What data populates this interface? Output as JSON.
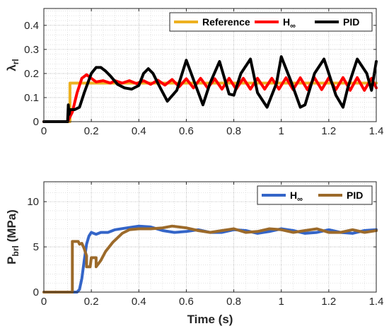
{
  "chart_data": [
    {
      "type": "line",
      "ylabel": "λ",
      "ylabel_sub": "rl",
      "xlabel": "",
      "xlim": [
        0,
        1.4
      ],
      "ylim": [
        0,
        0.47
      ],
      "xticks": [
        "0",
        "0.2",
        "0.4",
        "0.6",
        "0.8",
        "1",
        "1.2",
        "1.4"
      ],
      "yticks": [
        "0",
        "0.1",
        "0.2",
        "0.3",
        "0.4"
      ],
      "grid": true,
      "legend_position": "top-right",
      "series": [
        {
          "name": "Reference",
          "color": "#edb120",
          "x": [
            0,
            0.11,
            0.11,
            1.4
          ],
          "y": [
            0,
            0,
            0.16,
            0.16
          ]
        },
        {
          "name": "H",
          "name_sub": "∞",
          "color": "#ff0000",
          "x": [
            0,
            0.1,
            0.12,
            0.14,
            0.16,
            0.18,
            0.2,
            0.22,
            0.25,
            0.28,
            0.3,
            0.33,
            0.36,
            0.39,
            0.42,
            0.45,
            0.48,
            0.51,
            0.54,
            0.57,
            0.6,
            0.63,
            0.66,
            0.69,
            0.72,
            0.75,
            0.78,
            0.81,
            0.84,
            0.87,
            0.9,
            0.93,
            0.96,
            0.99,
            1.02,
            1.05,
            1.08,
            1.11,
            1.14,
            1.17,
            1.2,
            1.23,
            1.26,
            1.29,
            1.32,
            1.35,
            1.38,
            1.4
          ],
          "y": [
            0,
            0,
            0.04,
            0.12,
            0.18,
            0.195,
            0.18,
            0.165,
            0.17,
            0.16,
            0.17,
            0.16,
            0.17,
            0.158,
            0.17,
            0.155,
            0.172,
            0.152,
            0.175,
            0.145,
            0.178,
            0.14,
            0.18,
            0.14,
            0.178,
            0.135,
            0.18,
            0.135,
            0.18,
            0.135,
            0.18,
            0.135,
            0.18,
            0.135,
            0.182,
            0.133,
            0.182,
            0.133,
            0.182,
            0.133,
            0.182,
            0.133,
            0.183,
            0.13,
            0.183,
            0.13,
            0.18,
            0.14
          ]
        },
        {
          "name": "PID",
          "color": "#000000",
          "x": [
            0,
            0.1,
            0.103,
            0.106,
            0.11,
            0.13,
            0.15,
            0.17,
            0.2,
            0.22,
            0.24,
            0.26,
            0.28,
            0.31,
            0.34,
            0.37,
            0.4,
            0.42,
            0.44,
            0.46,
            0.48,
            0.52,
            0.56,
            0.6,
            0.63,
            0.67,
            0.7,
            0.74,
            0.78,
            0.8,
            0.83,
            0.87,
            0.9,
            0.94,
            0.98,
            1.0,
            1.04,
            1.08,
            1.1,
            1.14,
            1.18,
            1.2,
            1.23,
            1.26,
            1.28,
            1.32,
            1.36,
            1.38,
            1.4
          ],
          "y": [
            0,
            0,
            0.07,
            0.03,
            0.05,
            0.05,
            0.06,
            0.12,
            0.2,
            0.225,
            0.225,
            0.21,
            0.19,
            0.155,
            0.14,
            0.135,
            0.15,
            0.2,
            0.22,
            0.2,
            0.16,
            0.085,
            0.13,
            0.255,
            0.175,
            0.07,
            0.16,
            0.25,
            0.115,
            0.11,
            0.2,
            0.26,
            0.12,
            0.06,
            0.16,
            0.27,
            0.17,
            0.06,
            0.07,
            0.2,
            0.26,
            0.2,
            0.11,
            0.06,
            0.14,
            0.26,
            0.2,
            0.13,
            0.25
          ]
        }
      ]
    },
    {
      "type": "line",
      "ylabel": "P",
      "ylabel_sub": "brl",
      "ylabel_unit": " (MPa)",
      "xlabel": "Time (s)",
      "xlim": [
        0,
        1.4
      ],
      "ylim": [
        0,
        12.2
      ],
      "xticks": [
        "0",
        "0.2",
        "0.4",
        "0.6",
        "0.8",
        "1",
        "1.2",
        "1.4"
      ],
      "yticks": [
        "0",
        "5",
        "10"
      ],
      "grid": true,
      "legend_position": "top-right",
      "series": [
        {
          "name": "H",
          "name_sub": "∞",
          "color": "#3465c8",
          "x": [
            0,
            0.14,
            0.15,
            0.16,
            0.17,
            0.18,
            0.19,
            0.2,
            0.22,
            0.24,
            0.27,
            0.3,
            0.35,
            0.4,
            0.45,
            0.5,
            0.55,
            0.6,
            0.65,
            0.7,
            0.75,
            0.8,
            0.85,
            0.9,
            0.95,
            1.0,
            1.05,
            1.1,
            1.15,
            1.2,
            1.25,
            1.3,
            1.35,
            1.4
          ],
          "y": [
            0,
            0,
            0.3,
            1.5,
            3.5,
            5.3,
            6.2,
            6.6,
            6.4,
            6.6,
            6.6,
            6.9,
            7.1,
            7.3,
            7.2,
            6.8,
            6.6,
            6.7,
            6.9,
            6.6,
            6.6,
            6.9,
            6.8,
            6.5,
            6.7,
            7.0,
            6.8,
            6.5,
            6.6,
            6.9,
            6.6,
            6.5,
            6.8,
            6.9
          ]
        },
        {
          "name": "PID",
          "color": "#9c6a2a",
          "x": [
            0,
            0.12,
            0.12,
            0.145,
            0.15,
            0.16,
            0.17,
            0.18,
            0.18,
            0.195,
            0.2,
            0.22,
            0.22,
            0.24,
            0.26,
            0.29,
            0.33,
            0.36,
            0.4,
            0.45,
            0.5,
            0.54,
            0.6,
            0.65,
            0.7,
            0.75,
            0.8,
            0.85,
            0.9,
            0.95,
            1.0,
            1.05,
            1.1,
            1.15,
            1.2,
            1.25,
            1.3,
            1.35,
            1.4
          ],
          "y": [
            0,
            0,
            5.6,
            5.6,
            5.3,
            5.4,
            4.8,
            4.0,
            2.8,
            2.8,
            3.8,
            3.8,
            2.8,
            3.5,
            4.5,
            5.5,
            6.5,
            6.9,
            7.0,
            7.0,
            7.1,
            7.3,
            7.1,
            6.8,
            6.6,
            6.8,
            7.0,
            6.6,
            6.7,
            7.0,
            6.9,
            6.6,
            6.8,
            7.0,
            6.6,
            6.6,
            6.9,
            6.6,
            6.8
          ]
        }
      ]
    }
  ]
}
